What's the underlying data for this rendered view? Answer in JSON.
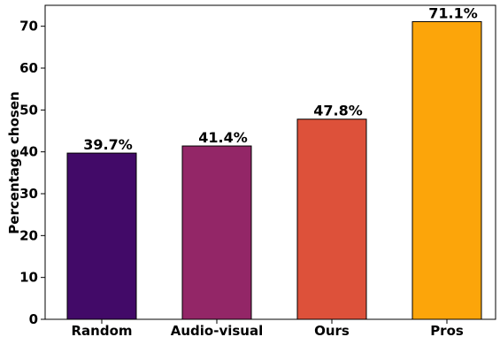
{
  "chart_data": {
    "type": "bar",
    "categories": [
      "Random",
      "Audio-visual",
      "Ours",
      "Pros"
    ],
    "values": [
      39.7,
      41.4,
      47.8,
      71.1
    ],
    "data_labels": [
      "39.7%",
      "41.4%",
      "47.8%",
      "71.1%"
    ],
    "colors": [
      "#420a68",
      "#932667",
      "#dd513a",
      "#fca50a"
    ],
    "title": "",
    "xlabel": "",
    "ylabel": "Percentage chosen",
    "ylim": [
      0,
      75
    ],
    "yticks": [
      0,
      10,
      20,
      30,
      40,
      50,
      60,
      70
    ],
    "grid": false,
    "legend": "none"
  }
}
